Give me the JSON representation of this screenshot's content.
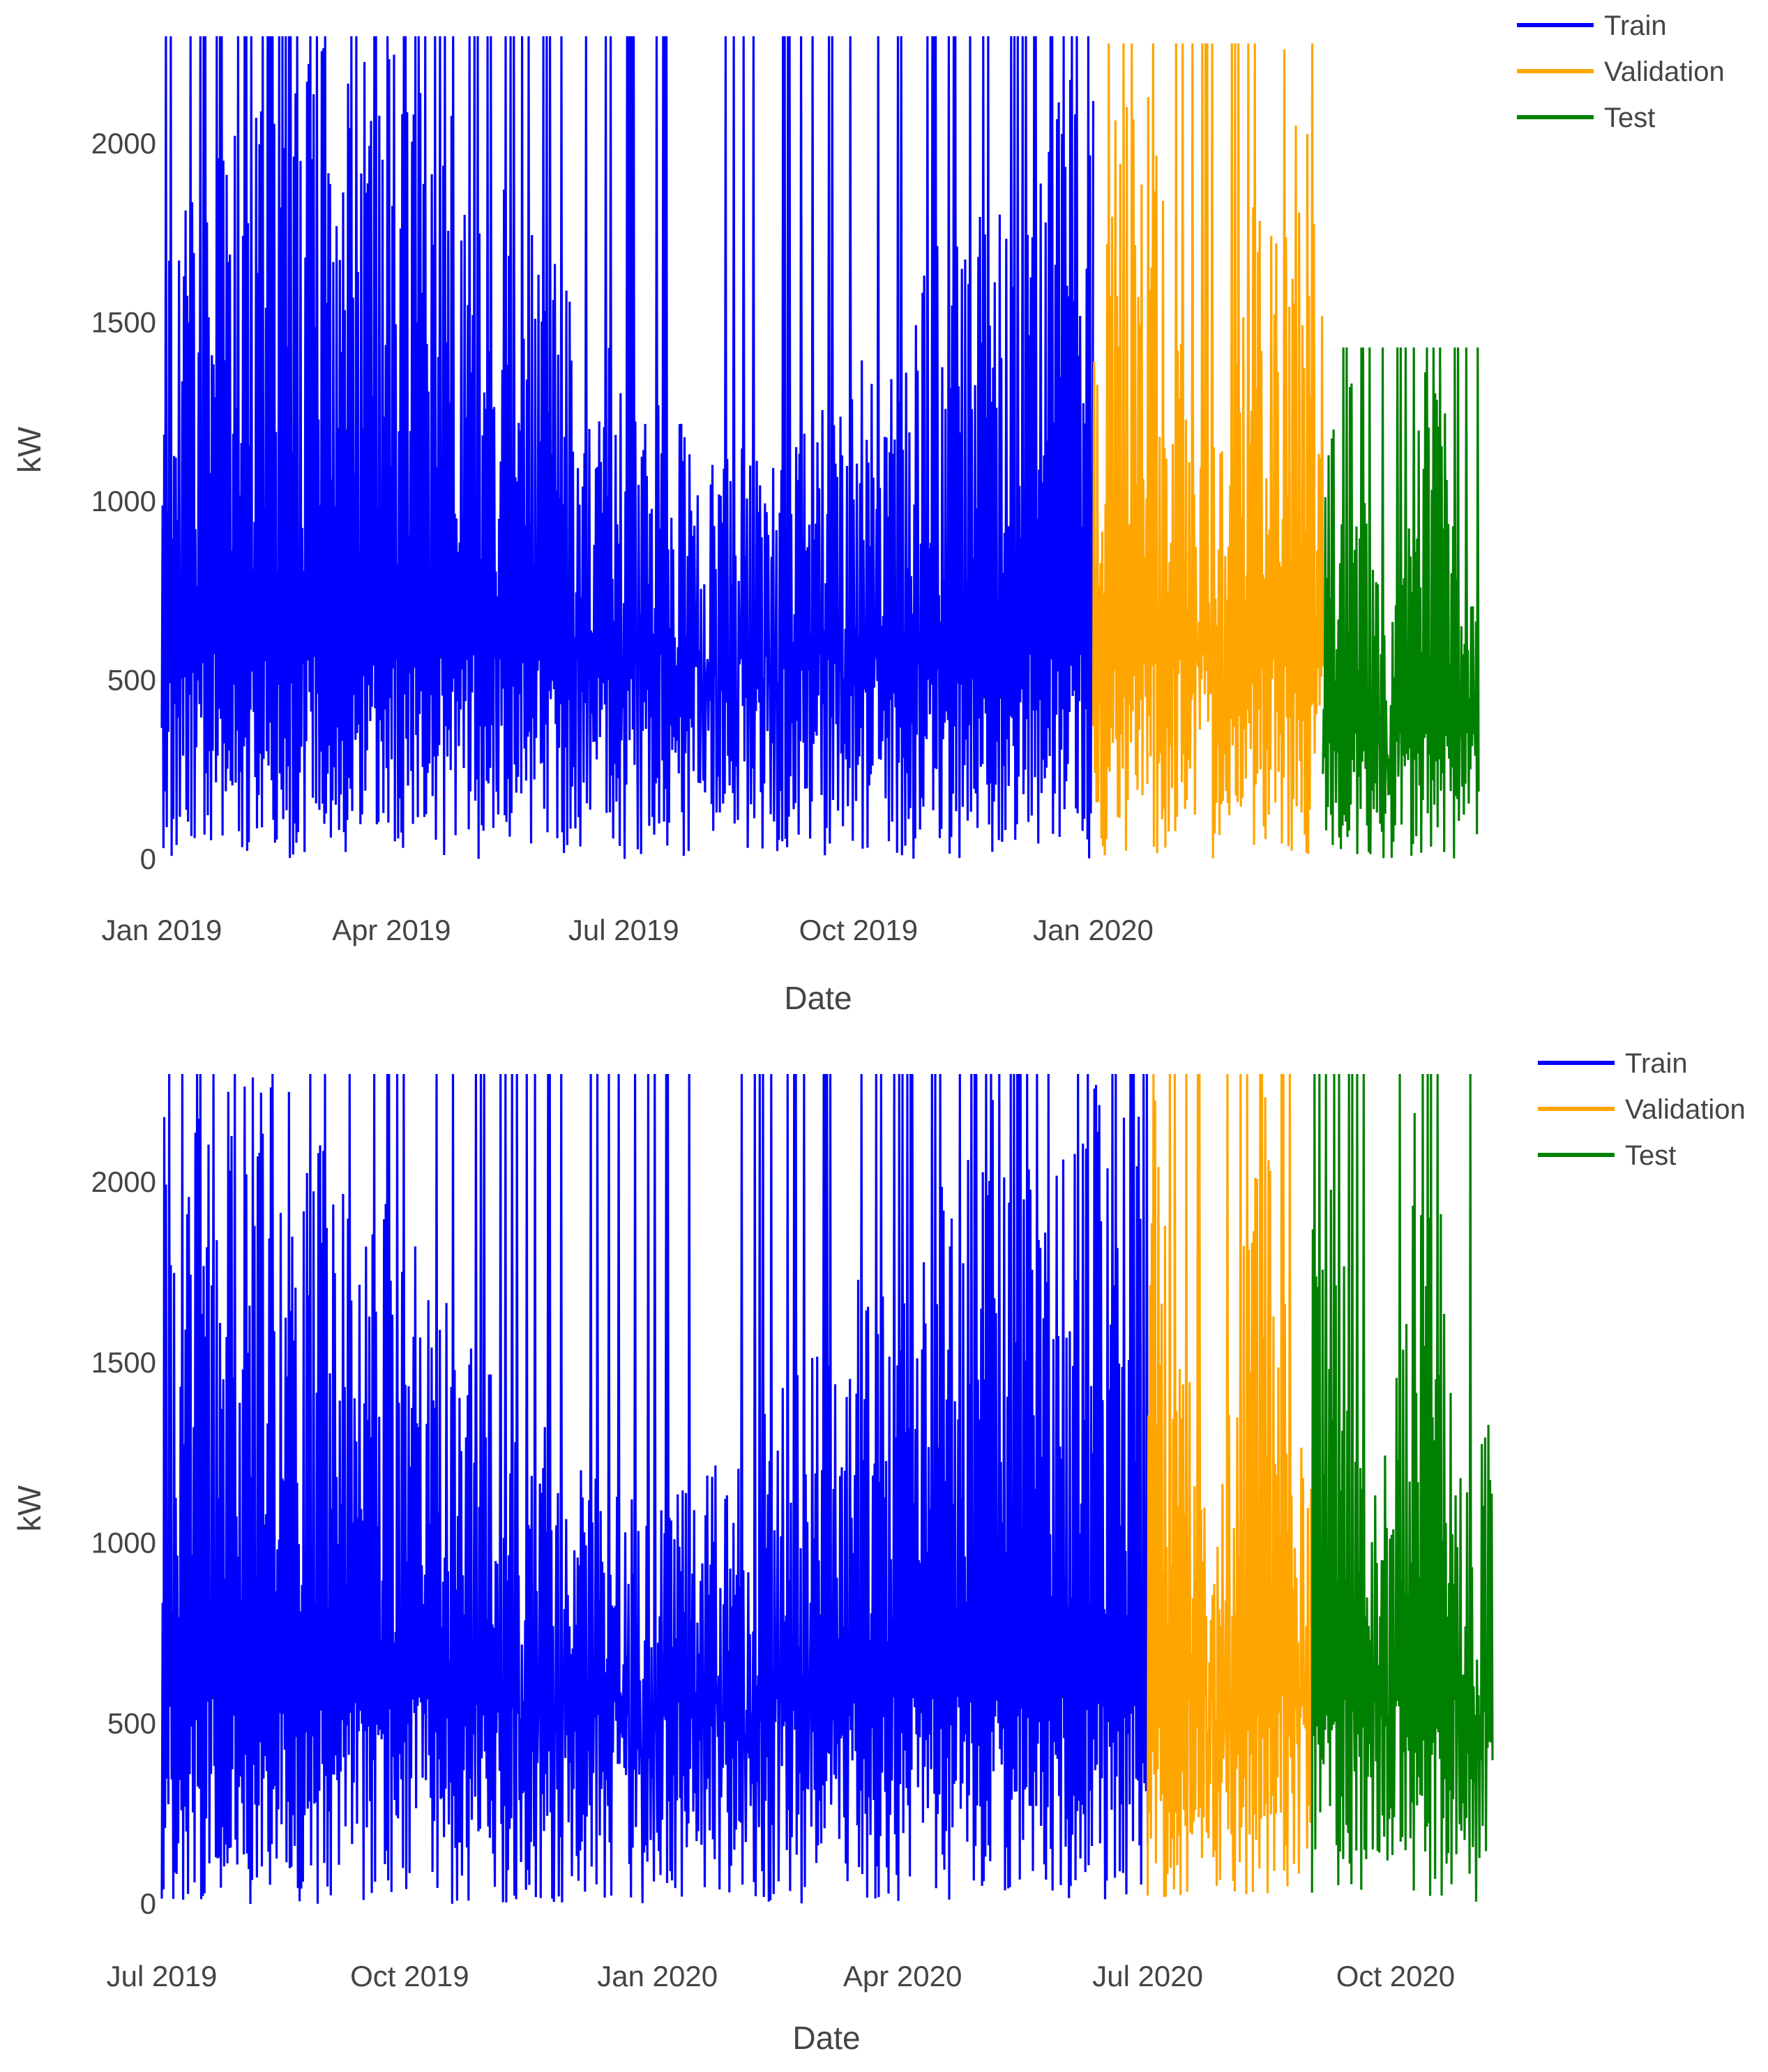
{
  "chart_data": [
    {
      "type": "line",
      "title": "",
      "xlabel": "Date",
      "ylabel": "kW",
      "ylim": [
        0,
        2300
      ],
      "yticks": [
        0,
        500,
        1000,
        1500,
        2000
      ],
      "x_range": [
        "2019-01-01",
        "2020-05-31"
      ],
      "xticks": [
        {
          "date": "2019-01-01",
          "label": "Jan 2019"
        },
        {
          "date": "2019-04-01",
          "label": "Apr 2019"
        },
        {
          "date": "2019-07-01",
          "label": "Jul 2019"
        },
        {
          "date": "2019-10-01",
          "label": "Oct 2019"
        },
        {
          "date": "2020-01-01",
          "label": "Jan 2020"
        }
      ],
      "legend_position": "top-right",
      "series": [
        {
          "name": "Train",
          "color": "#0000ff",
          "start": "2019-01-01",
          "end": "2020-01-01",
          "y_max": 2300,
          "y_min": 0
        },
        {
          "name": "Validation",
          "color": "#ffa500",
          "start": "2020-01-01",
          "end": "2020-03-31",
          "y_max": 2280,
          "y_min": 0
        },
        {
          "name": "Test",
          "color": "#008000",
          "start": "2020-03-31",
          "end": "2020-05-31",
          "y_max": 1430,
          "y_min": 0
        }
      ]
    },
    {
      "type": "line",
      "title": "",
      "xlabel": "Date",
      "ylabel": "kW",
      "ylim": [
        0,
        2300
      ],
      "yticks": [
        0,
        500,
        1000,
        1500,
        2000
      ],
      "x_range": [
        "2019-07-01",
        "2020-11-06"
      ],
      "xticks": [
        {
          "date": "2019-07-01",
          "label": "Jul 2019"
        },
        {
          "date": "2019-10-01",
          "label": "Oct 2019"
        },
        {
          "date": "2020-01-01",
          "label": "Jan 2020"
        },
        {
          "date": "2020-04-01",
          "label": "Apr 2020"
        },
        {
          "date": "2020-07-01",
          "label": "Jul 2020"
        },
        {
          "date": "2020-10-01",
          "label": "Oct 2020"
        }
      ],
      "legend_position": "top-right",
      "series": [
        {
          "name": "Train",
          "color": "#0000ff",
          "start": "2019-07-01",
          "end": "2020-07-01",
          "y_max": 2300,
          "y_min": 0
        },
        {
          "name": "Validation",
          "color": "#ffa500",
          "start": "2020-07-01",
          "end": "2020-08-31",
          "y_max": 2300,
          "y_min": 0
        },
        {
          "name": "Test",
          "color": "#008000",
          "start": "2020-08-31",
          "end": "2020-11-06",
          "y_max": 2300,
          "y_min": 0
        }
      ]
    }
  ]
}
